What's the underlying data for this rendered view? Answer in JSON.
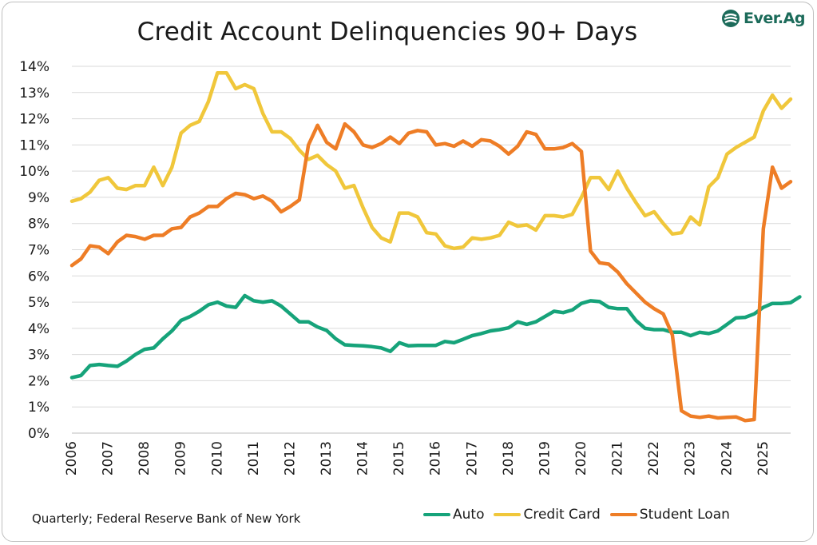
{
  "chart_data": {
    "type": "line",
    "title": "Credit Account Delinquencies 90+ Days",
    "xlabel": "",
    "ylabel": "",
    "ylim": [
      0,
      14
    ],
    "xlim": [
      2006,
      2025.75
    ],
    "y_ticks": [
      "0%",
      "1%",
      "2%",
      "3%",
      "4%",
      "5%",
      "6%",
      "7%",
      "8%",
      "9%",
      "10%",
      "11%",
      "12%",
      "13%",
      "14%"
    ],
    "x_ticks": [
      "2006",
      "2007",
      "2008",
      "2009",
      "2010",
      "2011",
      "2012",
      "2013",
      "2014",
      "2015",
      "2016",
      "2017",
      "2018",
      "2019",
      "2020",
      "2021",
      "2022",
      "2023",
      "2024",
      "2025"
    ],
    "grid": true,
    "legend_position": "bottom-right",
    "x_start": 2006,
    "x_step": 0.25,
    "series": [
      {
        "name": "Auto",
        "color": "#16a37a",
        "values": [
          2.12,
          2.2,
          2.58,
          2.62,
          2.58,
          2.55,
          2.75,
          3.0,
          3.2,
          3.25,
          3.6,
          3.9,
          4.3,
          4.45,
          4.65,
          4.9,
          5.0,
          4.85,
          4.8,
          5.25,
          5.05,
          5.0,
          5.05,
          4.85,
          4.55,
          4.25,
          4.25,
          4.05,
          3.92,
          3.6,
          3.37,
          3.35,
          3.33,
          3.3,
          3.25,
          3.12,
          3.45,
          3.33,
          3.35,
          3.35,
          3.35,
          3.5,
          3.45,
          3.58,
          3.72,
          3.8,
          3.9,
          3.95,
          4.02,
          4.25,
          4.15,
          4.25,
          4.45,
          4.65,
          4.6,
          4.7,
          4.95,
          5.05,
          5.02,
          4.8,
          4.75,
          4.75,
          4.3,
          4.0,
          3.95,
          3.95,
          3.85,
          3.85,
          3.72,
          3.85,
          3.8,
          3.9,
          4.15,
          4.4,
          4.42,
          4.55,
          4.8,
          4.95,
          4.95,
          4.98,
          5.2
        ]
      },
      {
        "name": "Credit Card",
        "color": "#f0c73b",
        "values": [
          8.85,
          8.95,
          9.2,
          9.65,
          9.75,
          9.35,
          9.3,
          9.45,
          9.45,
          10.15,
          9.45,
          10.15,
          11.45,
          11.75,
          11.9,
          12.65,
          13.75,
          13.75,
          13.15,
          13.3,
          13.15,
          12.2,
          11.5,
          11.5,
          11.25,
          10.8,
          10.45,
          10.6,
          10.25,
          10.0,
          9.35,
          9.45,
          8.6,
          7.85,
          7.45,
          7.3,
          8.4,
          8.4,
          8.25,
          7.65,
          7.6,
          7.15,
          7.05,
          7.1,
          7.45,
          7.4,
          7.45,
          7.55,
          8.05,
          7.9,
          7.95,
          7.75,
          8.3,
          8.3,
          8.25,
          8.35,
          9.0,
          9.75,
          9.75,
          9.3,
          10.0,
          9.35,
          8.8,
          8.3,
          8.45,
          8.0,
          7.6,
          7.65,
          8.25,
          7.95,
          9.4,
          9.75,
          10.65,
          10.9,
          11.1,
          11.3,
          12.3,
          12.9,
          12.4,
          12.75
        ]
      },
      {
        "name": "Student Loan",
        "color": "#ee7d26",
        "values": [
          6.4,
          6.65,
          7.15,
          7.1,
          6.85,
          7.3,
          7.55,
          7.5,
          7.4,
          7.55,
          7.55,
          7.8,
          7.85,
          8.25,
          8.4,
          8.65,
          8.65,
          8.95,
          9.15,
          9.1,
          8.95,
          9.05,
          8.85,
          8.45,
          8.65,
          8.9,
          11.0,
          11.75,
          11.1,
          10.85,
          11.8,
          11.5,
          11.0,
          10.9,
          11.05,
          11.3,
          11.05,
          11.45,
          11.55,
          11.5,
          11.0,
          11.05,
          10.95,
          11.15,
          10.95,
          11.2,
          11.15,
          10.95,
          10.65,
          10.95,
          11.5,
          11.4,
          10.85,
          10.85,
          10.9,
          11.05,
          10.75,
          6.95,
          6.5,
          6.45,
          6.15,
          5.7,
          5.35,
          5.0,
          4.75,
          4.55,
          3.75,
          0.85,
          0.65,
          0.6,
          0.65,
          0.58,
          0.6,
          0.62,
          0.48,
          0.52,
          7.8,
          10.15,
          9.35,
          9.6
        ]
      }
    ]
  },
  "logo": {
    "text": "Ever.Ag",
    "icon": "ever-ag-logo-icon",
    "color": "#1c6b5a"
  },
  "footer": {
    "source": "Quarterly; Federal Reserve Bank of New York"
  }
}
